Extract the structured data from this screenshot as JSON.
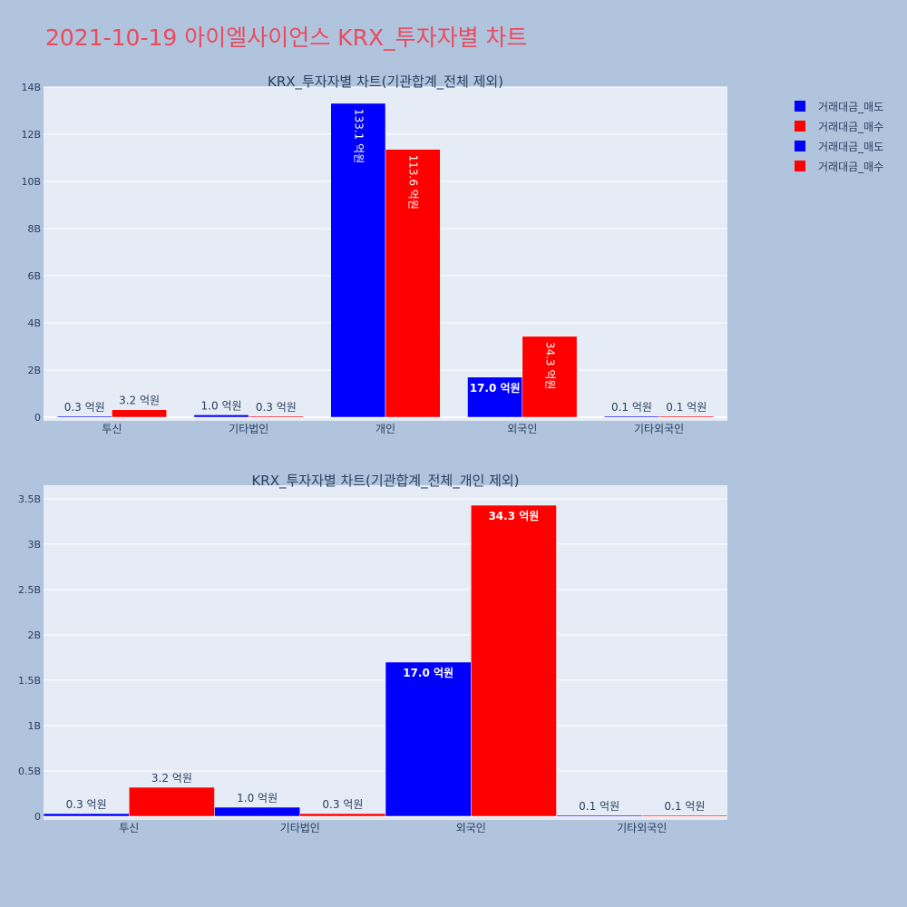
{
  "title": "2021-10-19 아이엘사이언스 KRX_투자자별 차트",
  "colors": {
    "sell": "#0000ff",
    "buy": "#ff0000",
    "title": "#ec4a5d",
    "plot_bg": "#e5ecf6",
    "page_bg": "#b0c4de",
    "text": "#2a3f5f"
  },
  "legend": [
    {
      "label": "거래대금_매도",
      "color": "#0000ff"
    },
    {
      "label": "거래대금_매수",
      "color": "#ff0000"
    },
    {
      "label": "거래대금_매도",
      "color": "#0000ff"
    },
    {
      "label": "거래대금_매수",
      "color": "#ff0000"
    }
  ],
  "chart_data": [
    {
      "type": "bar",
      "title": "KRX_투자자별 차트(기관합계_전체 제외)",
      "categories": [
        "투신",
        "기타법인",
        "개인",
        "외국인",
        "기타외국인"
      ],
      "series": [
        {
          "name": "거래대금_매도",
          "color": "#0000ff",
          "values": [
            0.03,
            0.1,
            13.31,
            1.7,
            0.01
          ],
          "labels": [
            "0.3 억원",
            "1.0 억원",
            "133.1 억원",
            "17.0 억원",
            "0.1 억원"
          ]
        },
        {
          "name": "거래대금_매수",
          "color": "#ff0000",
          "values": [
            0.32,
            0.03,
            11.36,
            3.43,
            0.01
          ],
          "labels": [
            "3.2 억원",
            "0.3 억원",
            "113.6 억원",
            "34.3 억원",
            "0.1 억원"
          ]
        }
      ],
      "ylim": [
        0,
        14
      ],
      "yticks": [
        0,
        2,
        4,
        6,
        8,
        10,
        12,
        14
      ],
      "ytick_labels": [
        "0",
        "2B",
        "4B",
        "6B",
        "8B",
        "10B",
        "12B",
        "14B"
      ]
    },
    {
      "type": "bar",
      "title": "KRX_투자자별 차트(기관합계_전체_개인 제외)",
      "categories": [
        "투신",
        "기타법인",
        "외국인",
        "기타외국인"
      ],
      "series": [
        {
          "name": "거래대금_매도",
          "color": "#0000ff",
          "values": [
            0.03,
            0.1,
            1.7,
            0.01
          ],
          "labels": [
            "0.3 억원",
            "1.0 억원",
            "17.0 억원",
            "0.1 억원"
          ]
        },
        {
          "name": "거래대금_매수",
          "color": "#ff0000",
          "values": [
            0.32,
            0.03,
            3.43,
            0.01
          ],
          "labels": [
            "3.2 억원",
            "0.3 억원",
            "34.3 억원",
            "0.1 억원"
          ]
        }
      ],
      "ylim": [
        0,
        3.65
      ],
      "yticks": [
        0,
        0.5,
        1,
        1.5,
        2,
        2.5,
        3,
        3.5
      ],
      "ytick_labels": [
        "0",
        "0.5B",
        "1B",
        "1.5B",
        "2B",
        "2.5B",
        "3B",
        "3.5B"
      ]
    }
  ]
}
